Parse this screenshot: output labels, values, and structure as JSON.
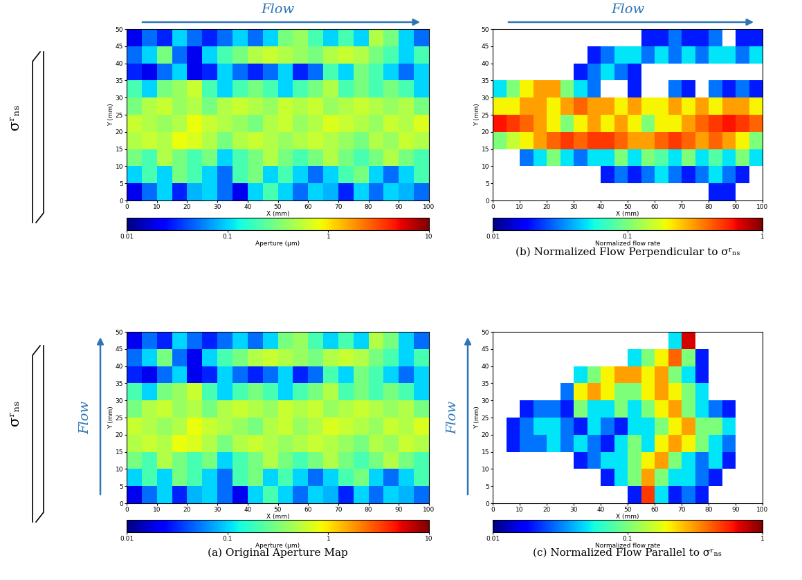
{
  "chart_data": [
    {
      "type": "heatmap",
      "xlabel": "X (mm)",
      "ylabel": "Y (mm)",
      "xlim": [
        0,
        100
      ],
      "ylim": [
        0,
        50
      ],
      "xticks": [
        0,
        10,
        20,
        30,
        40,
        50,
        60,
        70,
        80,
        90,
        100
      ],
      "yticks": [
        0,
        5,
        10,
        15,
        20,
        25,
        30,
        35,
        40,
        45,
        50
      ],
      "flow_label": "Flow",
      "stress_label": "σʳₙₛ",
      "colorbar": {
        "label": "Aperture (μm)",
        "range": [
          0.01,
          10
        ],
        "ticks": [
          0.01,
          0.1,
          1,
          10
        ],
        "log": true
      },
      "cells": [
        [
          0.02,
          0.05,
          0.1,
          0.03,
          0.08,
          0.1,
          0.05,
          0.02,
          0.1,
          0.2,
          0.1,
          0.05,
          0.1,
          0.08,
          0.03,
          0.1,
          0.05,
          0.1,
          0.08,
          0.05
        ],
        [
          0.1,
          0.2,
          0.1,
          0.3,
          0.2,
          0.1,
          0.05,
          0.2,
          0.3,
          0.1,
          0.2,
          0.1,
          0.05,
          0.1,
          0.2,
          0.3,
          0.1,
          0.05,
          0.1,
          0.2
        ],
        [
          0.3,
          0.2,
          0.5,
          0.3,
          0.2,
          0.3,
          0.1,
          0.2,
          0.3,
          0.5,
          0.3,
          0.2,
          0.3,
          0.5,
          0.3,
          0.2,
          0.3,
          0.5,
          0.3,
          0.2
        ],
        [
          0.5,
          0.6,
          0.5,
          0.8,
          0.7,
          0.5,
          0.3,
          0.5,
          0.6,
          0.5,
          0.4,
          0.5,
          0.6,
          0.5,
          0.4,
          0.3,
          0.5,
          0.4,
          0.6,
          0.5
        ],
        [
          0.6,
          0.5,
          0.4,
          0.5,
          0.8,
          0.6,
          0.5,
          0.4,
          0.3,
          0.5,
          0.6,
          0.4,
          0.5,
          0.7,
          0.6,
          0.5,
          0.4,
          0.6,
          0.5,
          0.7
        ],
        [
          0.3,
          0.5,
          0.6,
          0.4,
          0.5,
          0.3,
          0.5,
          0.6,
          0.5,
          0.4,
          0.6,
          0.5,
          0.6,
          0.4,
          0.5,
          0.6,
          0.5,
          0.4,
          0.5,
          0.3
        ],
        [
          0.2,
          0.1,
          0.3,
          0.4,
          0.6,
          0.2,
          0.1,
          0.2,
          0.3,
          0.2,
          0.1,
          0.2,
          0.3,
          0.5,
          0.2,
          0.3,
          0.2,
          0.3,
          0.2,
          0.1
        ],
        [
          0.03,
          0.02,
          0.05,
          0.1,
          0.02,
          0.03,
          0.1,
          0.05,
          0.03,
          0.05,
          0.1,
          0.03,
          0.05,
          0.2,
          0.1,
          0.3,
          0.2,
          0.1,
          0.05,
          0.1
        ],
        [
          0.05,
          0.1,
          0.3,
          0.05,
          0.02,
          0.1,
          0.2,
          0.3,
          0.5,
          0.6,
          0.5,
          0.4,
          0.3,
          0.5,
          0.6,
          0.5,
          0.3,
          0.2,
          0.1,
          0.2
        ],
        [
          0.02,
          0.05,
          0.03,
          0.1,
          0.05,
          0.03,
          0.05,
          0.1,
          0.05,
          0.1,
          0.3,
          0.4,
          0.2,
          0.1,
          0.2,
          0.1,
          0.5,
          0.3,
          0.1,
          0.05
        ]
      ]
    },
    {
      "type": "heatmap",
      "xlabel": "X (mm)",
      "ylabel": "Y (mm)",
      "xlim": [
        0,
        100
      ],
      "ylim": [
        0,
        50
      ],
      "xticks": [
        0,
        10,
        20,
        30,
        40,
        50,
        60,
        70,
        80,
        90,
        100
      ],
      "yticks": [
        0,
        5,
        10,
        15,
        20,
        25,
        30,
        35,
        40,
        45,
        50
      ],
      "flow_label": "Flow",
      "caption": "(b) Normalized Flow Perpendicular to σʳₙₛ",
      "colorbar": {
        "label": "Normalized flow rate",
        "range": [
          0.01,
          1
        ],
        "ticks": [
          0.01,
          0.1,
          1
        ],
        "log": true
      },
      "cells": [
        [
          null,
          null,
          null,
          null,
          null,
          null,
          null,
          null,
          null,
          null,
          null,
          null,
          null,
          null,
          null,
          null,
          0.02,
          0.02,
          null,
          null
        ],
        [
          null,
          null,
          null,
          null,
          null,
          null,
          null,
          null,
          0.02,
          0.03,
          0.02,
          0.03,
          0.05,
          0.03,
          0.02,
          0.03,
          0.05,
          0.03,
          0.02,
          null
        ],
        [
          null,
          null,
          0.03,
          0.05,
          0.1,
          0.05,
          0.03,
          0.05,
          0.05,
          0.1,
          0.05,
          0.1,
          0.08,
          0.05,
          0.1,
          0.05,
          0.08,
          0.05,
          0.1,
          0.05
        ],
        [
          0.1,
          0.15,
          0.2,
          0.3,
          0.4,
          0.5,
          0.4,
          0.5,
          0.5,
          0.4,
          0.3,
          0.3,
          0.4,
          0.5,
          0.4,
          0.3,
          0.4,
          0.3,
          0.2,
          0.1
        ],
        [
          0.6,
          0.5,
          0.4,
          0.3,
          0.2,
          0.1,
          0.2,
          0.3,
          0.2,
          0.3,
          0.2,
          0.1,
          0.2,
          0.2,
          0.3,
          0.4,
          0.5,
          0.6,
          0.5,
          0.4
        ],
        [
          0.2,
          0.2,
          0.3,
          0.3,
          0.2,
          0.3,
          0.4,
          0.3,
          0.3,
          0.2,
          0.3,
          0.2,
          0.2,
          0.3,
          0.2,
          0.3,
          0.2,
          0.3,
          0.3,
          0.2
        ],
        [
          0.05,
          0.1,
          0.2,
          0.3,
          0.3,
          0.1,
          0.05,
          0.03,
          null,
          null,
          0.02,
          null,
          null,
          0.03,
          0.02,
          null,
          0.03,
          0.02,
          0.03,
          0.02
        ],
        [
          null,
          null,
          null,
          null,
          null,
          null,
          0.02,
          0.03,
          0.05,
          0.03,
          0.02,
          null,
          null,
          null,
          null,
          null,
          null,
          null,
          null,
          null
        ],
        [
          null,
          null,
          null,
          null,
          null,
          null,
          null,
          0.02,
          0.03,
          0.05,
          0.05,
          0.03,
          0.05,
          0.03,
          0.05,
          0.03,
          0.05,
          0.05,
          0.03,
          0.05
        ],
        [
          null,
          null,
          null,
          null,
          null,
          null,
          null,
          null,
          null,
          null,
          null,
          0.02,
          0.02,
          0.03,
          0.02,
          0.02,
          0.03,
          null,
          0.02,
          0.02
        ]
      ]
    },
    {
      "type": "heatmap",
      "xlabel": "X (mm)",
      "ylabel": "Y (mm)",
      "xlim": [
        0,
        100
      ],
      "ylim": [
        0,
        50
      ],
      "xticks": [
        0,
        10,
        20,
        30,
        40,
        50,
        60,
        70,
        80,
        90,
        100
      ],
      "yticks": [
        0,
        5,
        10,
        15,
        20,
        25,
        30,
        35,
        40,
        45,
        50
      ],
      "flow_label": "Flow",
      "stress_label": "σʳₙₛ",
      "caption": "(a) Original Aperture Map",
      "colorbar": {
        "label": "Aperture (μm)",
        "range": [
          0.01,
          10
        ],
        "ticks": [
          0.01,
          0.1,
          1,
          10
        ],
        "log": true
      },
      "cells": [
        [
          0.02,
          0.05,
          0.1,
          0.03,
          0.08,
          0.1,
          0.05,
          0.02,
          0.1,
          0.2,
          0.1,
          0.05,
          0.1,
          0.08,
          0.03,
          0.1,
          0.05,
          0.1,
          0.08,
          0.05
        ],
        [
          0.1,
          0.2,
          0.1,
          0.3,
          0.2,
          0.1,
          0.05,
          0.2,
          0.3,
          0.1,
          0.2,
          0.1,
          0.05,
          0.1,
          0.2,
          0.3,
          0.1,
          0.05,
          0.1,
          0.2
        ],
        [
          0.3,
          0.2,
          0.5,
          0.3,
          0.2,
          0.3,
          0.1,
          0.2,
          0.3,
          0.5,
          0.3,
          0.2,
          0.3,
          0.5,
          0.3,
          0.2,
          0.3,
          0.5,
          0.3,
          0.2
        ],
        [
          0.5,
          0.6,
          0.5,
          0.8,
          0.7,
          0.5,
          0.3,
          0.5,
          0.6,
          0.5,
          0.4,
          0.5,
          0.6,
          0.5,
          0.4,
          0.3,
          0.5,
          0.4,
          0.6,
          0.5
        ],
        [
          0.6,
          0.5,
          0.4,
          0.5,
          0.8,
          0.6,
          0.5,
          0.4,
          0.3,
          0.5,
          0.6,
          0.4,
          0.5,
          0.7,
          0.6,
          0.5,
          0.4,
          0.6,
          0.5,
          0.7
        ],
        [
          0.3,
          0.5,
          0.6,
          0.4,
          0.5,
          0.3,
          0.5,
          0.6,
          0.5,
          0.4,
          0.6,
          0.5,
          0.6,
          0.4,
          0.5,
          0.6,
          0.5,
          0.4,
          0.5,
          0.3
        ],
        [
          0.2,
          0.1,
          0.3,
          0.4,
          0.6,
          0.2,
          0.1,
          0.2,
          0.3,
          0.2,
          0.1,
          0.2,
          0.3,
          0.5,
          0.2,
          0.3,
          0.2,
          0.3,
          0.2,
          0.1
        ],
        [
          0.03,
          0.02,
          0.05,
          0.1,
          0.02,
          0.03,
          0.1,
          0.05,
          0.03,
          0.05,
          0.1,
          0.03,
          0.05,
          0.2,
          0.1,
          0.3,
          0.2,
          0.1,
          0.05,
          0.1
        ],
        [
          0.05,
          0.1,
          0.3,
          0.05,
          0.02,
          0.1,
          0.2,
          0.3,
          0.5,
          0.6,
          0.5,
          0.4,
          0.3,
          0.5,
          0.6,
          0.5,
          0.3,
          0.2,
          0.1,
          0.2
        ],
        [
          0.02,
          0.05,
          0.03,
          0.1,
          0.05,
          0.03,
          0.05,
          0.1,
          0.05,
          0.1,
          0.3,
          0.4,
          0.2,
          0.1,
          0.2,
          0.1,
          0.5,
          0.3,
          0.1,
          0.05
        ]
      ]
    },
    {
      "type": "heatmap",
      "xlabel": "X (mm)",
      "ylabel": "Y (mm)",
      "xlim": [
        0,
        100
      ],
      "ylim": [
        0,
        50
      ],
      "xticks": [
        0,
        10,
        20,
        30,
        40,
        50,
        60,
        70,
        80,
        90,
        100
      ],
      "yticks": [
        0,
        5,
        10,
        15,
        20,
        25,
        30,
        35,
        40,
        45,
        50
      ],
      "flow_label": "Flow",
      "caption": "(c) Normalized Flow Parallel to σʳₙₛ",
      "colorbar": {
        "label": "Normalized flow rate",
        "range": [
          0.01,
          1
        ],
        "ticks": [
          0.01,
          0.1,
          1
        ],
        "log": true
      },
      "cells": [
        [
          null,
          null,
          null,
          null,
          null,
          null,
          null,
          null,
          null,
          null,
          0.02,
          0.5,
          0.05,
          0.02,
          0.03,
          0.02,
          null,
          null,
          null,
          null
        ],
        [
          null,
          null,
          null,
          null,
          null,
          null,
          null,
          null,
          0.02,
          0.05,
          0.1,
          0.3,
          0.1,
          0.05,
          0.05,
          0.03,
          0.02,
          null,
          null,
          null
        ],
        [
          null,
          null,
          null,
          null,
          null,
          null,
          0.02,
          0.03,
          0.05,
          0.05,
          0.1,
          0.2,
          0.3,
          0.1,
          0.05,
          0.03,
          0.05,
          0.02,
          null,
          null
        ],
        [
          null,
          0.02,
          0.03,
          0.03,
          0.05,
          0.03,
          0.05,
          0.03,
          0.02,
          0.05,
          0.1,
          0.05,
          0.2,
          0.3,
          0.2,
          0.1,
          0.05,
          0.03,
          null,
          null
        ],
        [
          null,
          0.02,
          0.03,
          0.05,
          0.05,
          0.03,
          0.02,
          0.05,
          0.03,
          0.02,
          0.05,
          0.05,
          0.1,
          0.2,
          0.3,
          0.1,
          0.1,
          0.05,
          null,
          null
        ],
        [
          null,
          null,
          0.02,
          0.03,
          0.03,
          0.02,
          0.1,
          0.05,
          0.05,
          0.1,
          0.05,
          0.1,
          0.2,
          0.3,
          0.1,
          0.05,
          0.03,
          0.02,
          null,
          null
        ],
        [
          null,
          null,
          null,
          null,
          null,
          0.03,
          0.2,
          0.3,
          0.2,
          0.1,
          0.1,
          0.2,
          0.3,
          0.2,
          0.1,
          0.05,
          null,
          null,
          null,
          null
        ],
        [
          null,
          null,
          null,
          null,
          null,
          null,
          0.05,
          0.1,
          0.2,
          0.3,
          0.3,
          0.2,
          0.3,
          0.1,
          0.05,
          0.02,
          null,
          null,
          null,
          null
        ],
        [
          null,
          null,
          null,
          null,
          null,
          null,
          null,
          null,
          null,
          null,
          0.05,
          0.1,
          0.2,
          0.4,
          0.1,
          0.02,
          null,
          null,
          null,
          null
        ],
        [
          null,
          null,
          null,
          null,
          null,
          null,
          null,
          null,
          null,
          null,
          null,
          null,
          null,
          0.05,
          0.7,
          null,
          null,
          null,
          null,
          null
        ]
      ]
    }
  ]
}
